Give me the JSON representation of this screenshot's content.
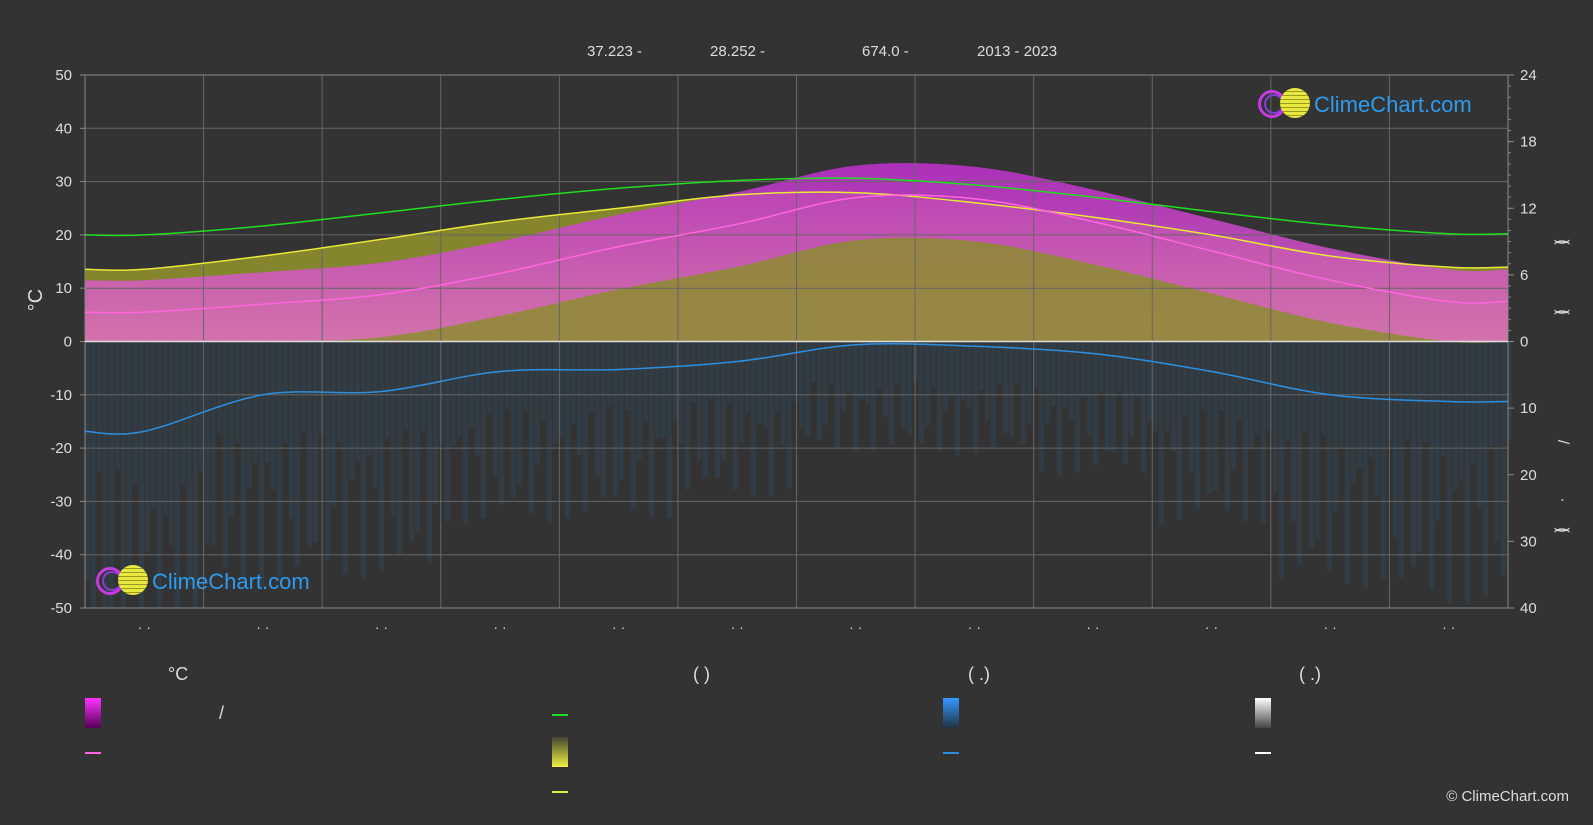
{
  "header": {
    "item1": "37.223 -",
    "item2": "28.252 -",
    "item3": "674.0 -",
    "item4": "2013 - 2023"
  },
  "logo_text": "ClimeChart.com",
  "copyright": "© ClimeChart.com",
  "y_left_label": "°C",
  "y_right_labels": [
    "(",
    ")",
    "(",
    ")",
    "/",
    "(",
    "·",
    ")"
  ],
  "x_tick_label": "· ·",
  "legend": {
    "col1_header": "°C",
    "col1_row1_text": "/",
    "col2_header": "(          )",
    "col3_header": "(    .)",
    "col4_header": "(    .)"
  },
  "colors": {
    "background": "#333333",
    "daylight": "#22dd22",
    "sunshine": "#e8e83a",
    "avg_max_temp": "#ff66dd",
    "precip": "#2e8fe0",
    "snow": "#ffffff",
    "temp_fill": "#d040d0",
    "sunshine_fill": "#a8a830"
  },
  "chart_data": {
    "type": "area",
    "months": 12,
    "y_left": {
      "ylim": [
        -50,
        50
      ],
      "ticks": [
        50,
        40,
        30,
        20,
        10,
        0,
        -10,
        -20,
        -30,
        -40,
        -50
      ]
    },
    "y_right_upper": {
      "ylim": [
        0,
        24
      ],
      "ticks": [
        24,
        18,
        12,
        6,
        0
      ]
    },
    "y_right_lower": {
      "ylim": [
        0,
        40
      ],
      "ticks": [
        10,
        20,
        30,
        40
      ]
    },
    "series": [
      {
        "id": "daylight_hours",
        "axis": "right_upper",
        "values": [
          9.6,
          10.4,
          11.6,
          12.8,
          13.8,
          14.5,
          14.7,
          14.1,
          13.0,
          11.7,
          10.5,
          9.7
        ]
      },
      {
        "id": "sunshine_hours",
        "axis": "right_upper",
        "values": [
          6.5,
          7.7,
          9.2,
          10.8,
          12.0,
          13.2,
          13.4,
          12.5,
          11.2,
          9.6,
          7.7,
          6.7
        ]
      },
      {
        "id": "avg_temp",
        "axis": "left",
        "values": [
          5.5,
          7.0,
          8.8,
          12.8,
          17.8,
          22.0,
          27.0,
          26.8,
          22.5,
          17.0,
          11.5,
          7.5
        ]
      },
      {
        "id": "precip_mm",
        "axis": "right_lower",
        "values": [
          13.5,
          8.0,
          7.5,
          4.5,
          4.2,
          3.0,
          0.5,
          0.7,
          1.8,
          4.5,
          8.0,
          9.0
        ]
      }
    ]
  }
}
